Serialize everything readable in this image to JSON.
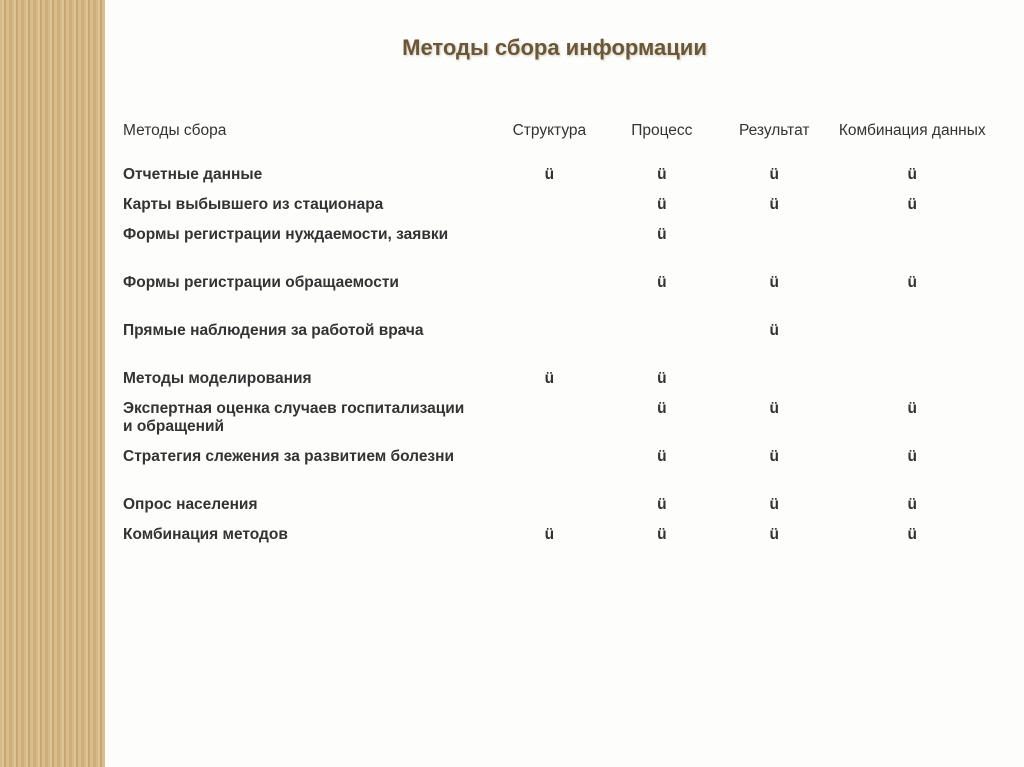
{
  "title": "Методы сбора информации",
  "mark": "ü",
  "columns": {
    "method": "Методы сбора",
    "col1": "Структура",
    "col2": "Процесс",
    "col3": "Результат",
    "col4": "Комбинация данных"
  },
  "rows": [
    {
      "label": "Отчетные данные",
      "c1": "ü",
      "c2": "ü",
      "c3": "ü",
      "c4": "ü",
      "spacerAfter": false
    },
    {
      "label": "Карты выбывшего из стационара",
      "c1": "",
      "c2": "ü",
      "c3": "ü",
      "c4": "ü",
      "spacerAfter": false
    },
    {
      "label": "Формы регистрации нуждаемости, заявки",
      "c1": "",
      "c2": "ü",
      "c3": "",
      "c4": "",
      "spacerAfter": true
    },
    {
      "label": "Формы регистрации обращаемости",
      "c1": "",
      "c2": "ü",
      "c3": "ü",
      "c4": "ü",
      "spacerAfter": true
    },
    {
      "label": "Прямые наблюдения за работой врача",
      "c1": "",
      "c2": "",
      "c3": "ü",
      "c4": "",
      "spacerAfter": true
    },
    {
      "label": "Методы моделирования",
      "c1": "ü",
      "c2": "ü",
      "c3": "",
      "c4": "",
      "spacerAfter": false
    },
    {
      "label": "Экспертная оценка случаев госпитализации и обращений",
      "c1": "",
      "c2": "ü",
      "c3": "ü",
      "c4": "ü",
      "spacerAfter": false
    },
    {
      "label": "Стратегия слежения за развитием болезни",
      "c1": "",
      "c2": "ü",
      "c3": "ü",
      "c4": "ü",
      "spacerAfter": true
    },
    {
      "label": "Опрос населения",
      "c1": "",
      "c2": "ü",
      "c3": "ü",
      "c4": "ü",
      "spacerAfter": false
    },
    {
      "label": "Комбинация методов",
      "c1": "ü",
      "c2": "ü",
      "c3": "ü",
      "c4": "ü",
      "spacerAfter": false
    }
  ]
}
